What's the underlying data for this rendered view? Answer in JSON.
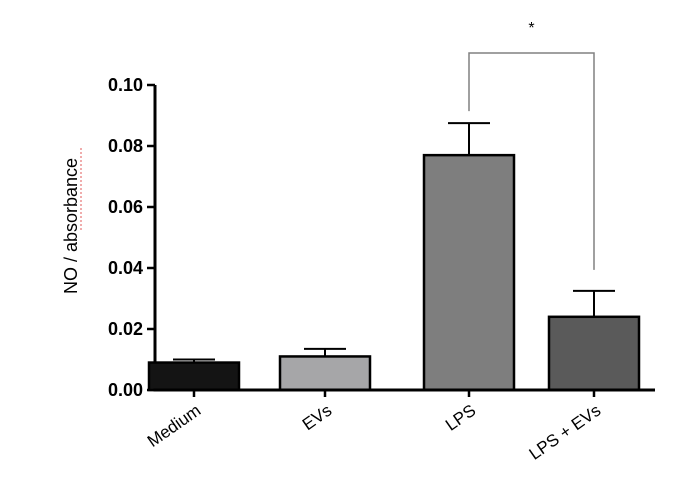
{
  "chart_data": {
    "type": "bar",
    "categories": [
      "Medium",
      "EVs",
      "LPS",
      "LPS + EVs"
    ],
    "values": [
      0.009,
      0.011,
      0.077,
      0.024
    ],
    "errors": [
      0.001,
      0.0025,
      0.0105,
      0.0085
    ],
    "bar_colors": [
      "#141414",
      "#a6a6a8",
      "#7e7e7e",
      "#5a5a5a"
    ],
    "ylabel": "NO / absorbance",
    "ylim": [
      0,
      0.1
    ],
    "yticks": [
      "0.00",
      "0.02",
      "0.04",
      "0.06",
      "0.08",
      "0.10"
    ],
    "significance": {
      "from": "LPS",
      "to": "LPS + EVs",
      "label": "*"
    }
  }
}
